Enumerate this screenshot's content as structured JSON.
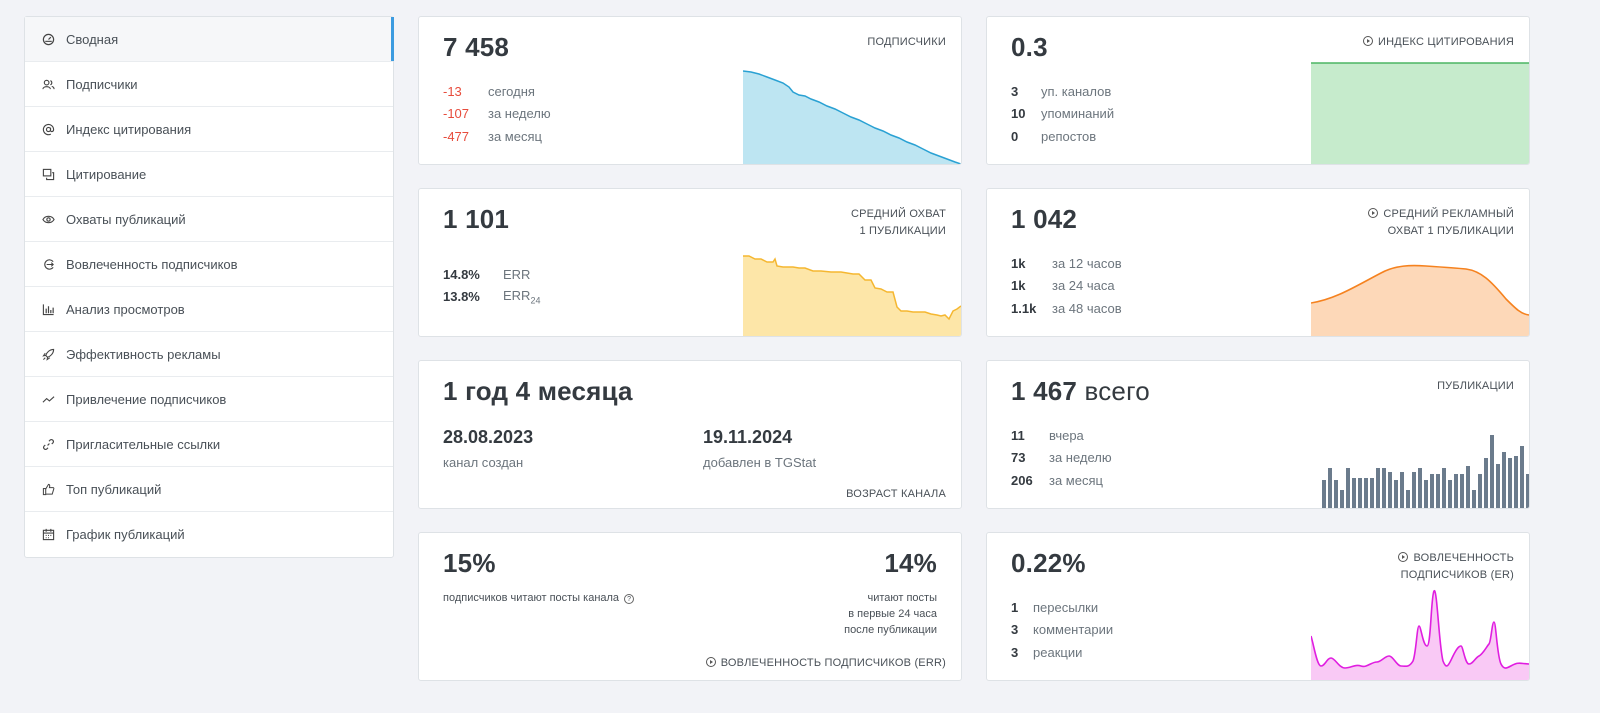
{
  "sidebar": {
    "items": [
      {
        "label": "Сводная",
        "icon": "dashboard-icon",
        "active": true
      },
      {
        "label": "Подписчики",
        "icon": "users-icon"
      },
      {
        "label": "Индекс цитирования",
        "icon": "at-icon"
      },
      {
        "label": "Цитирование",
        "icon": "quote-icon"
      },
      {
        "label": "Охваты публикаций",
        "icon": "eye-icon"
      },
      {
        "label": "Вовлеченность подписчиков",
        "icon": "engagement-icon"
      },
      {
        "label": "Анализ просмотров",
        "icon": "bar-chart-icon"
      },
      {
        "label": "Эффективность рекламы",
        "icon": "rocket-icon"
      },
      {
        "label": "Привлечение подписчиков",
        "icon": "trend-icon"
      },
      {
        "label": "Пригласительные ссылки",
        "icon": "link-icon"
      },
      {
        "label": "Топ публикаций",
        "icon": "thumbs-up-icon"
      },
      {
        "label": "График публикаций",
        "icon": "calendar-icon"
      }
    ]
  },
  "subscribers": {
    "value": "7 458",
    "label": "подписчики",
    "rows": [
      {
        "num": "-13",
        "text": "сегодня"
      },
      {
        "num": "-107",
        "text": "за неделю"
      },
      {
        "num": "-477",
        "text": "за месяц"
      }
    ],
    "color": "#3aa8d8"
  },
  "citation": {
    "value": "0.3",
    "label": "индекс цитирования",
    "rows": [
      {
        "num": "3",
        "text": "уп. каналов"
      },
      {
        "num": "10",
        "text": "упоминаний"
      },
      {
        "num": "0",
        "text": "репостов"
      }
    ],
    "color": "#5cc073"
  },
  "reach": {
    "value": "1 101",
    "label_line1": "средний охват",
    "label_line2": "1 публикации",
    "rows": [
      {
        "num": "14.8%",
        "text": "ERR",
        "sub": ""
      },
      {
        "num": "13.8%",
        "text": "ERR",
        "sub": "24"
      }
    ],
    "color": "#f5b731"
  },
  "ad_reach": {
    "value": "1 042",
    "label_line1": "средний рекламный",
    "label_line2": "охват 1 публикации",
    "rows": [
      {
        "num": "1k",
        "text": "за 12 часов"
      },
      {
        "num": "1k",
        "text": "за 24 часа"
      },
      {
        "num": "1.1k",
        "text": "за 48 часов"
      }
    ],
    "color": "#f5821f"
  },
  "age": {
    "value": "1 год 4 месяца",
    "created_date": "28.08.2023",
    "created_label": "канал создан",
    "added_date": "19.11.2024",
    "added_label": "добавлен в TGStat",
    "label": "возраст канала"
  },
  "posts": {
    "value": "1 467",
    "value_suffix": "всего",
    "label": "публикации",
    "rows": [
      {
        "num": "11",
        "text": "вчера"
      },
      {
        "num": "73",
        "text": "за неделю"
      },
      {
        "num": "206",
        "text": "за месяц"
      }
    ],
    "color": "#6c7a89"
  },
  "err": {
    "left_value": "15%",
    "left_text": "подписчиков читают посты канала",
    "right_value": "14%",
    "right_line1": "читают посты",
    "right_line2": "в первые 24 часа",
    "right_line3": "после публикации",
    "label": "вовлеченность подписчиков (err)"
  },
  "er": {
    "value": "0.22%",
    "label_line1": "вовлеченность",
    "label_line2": "подписчиков (er)",
    "rows": [
      {
        "num": "1",
        "text": "пересылки"
      },
      {
        "num": "3",
        "text": "комментарии"
      },
      {
        "num": "3",
        "text": "реакции"
      }
    ],
    "color": "#e83ee0"
  }
}
